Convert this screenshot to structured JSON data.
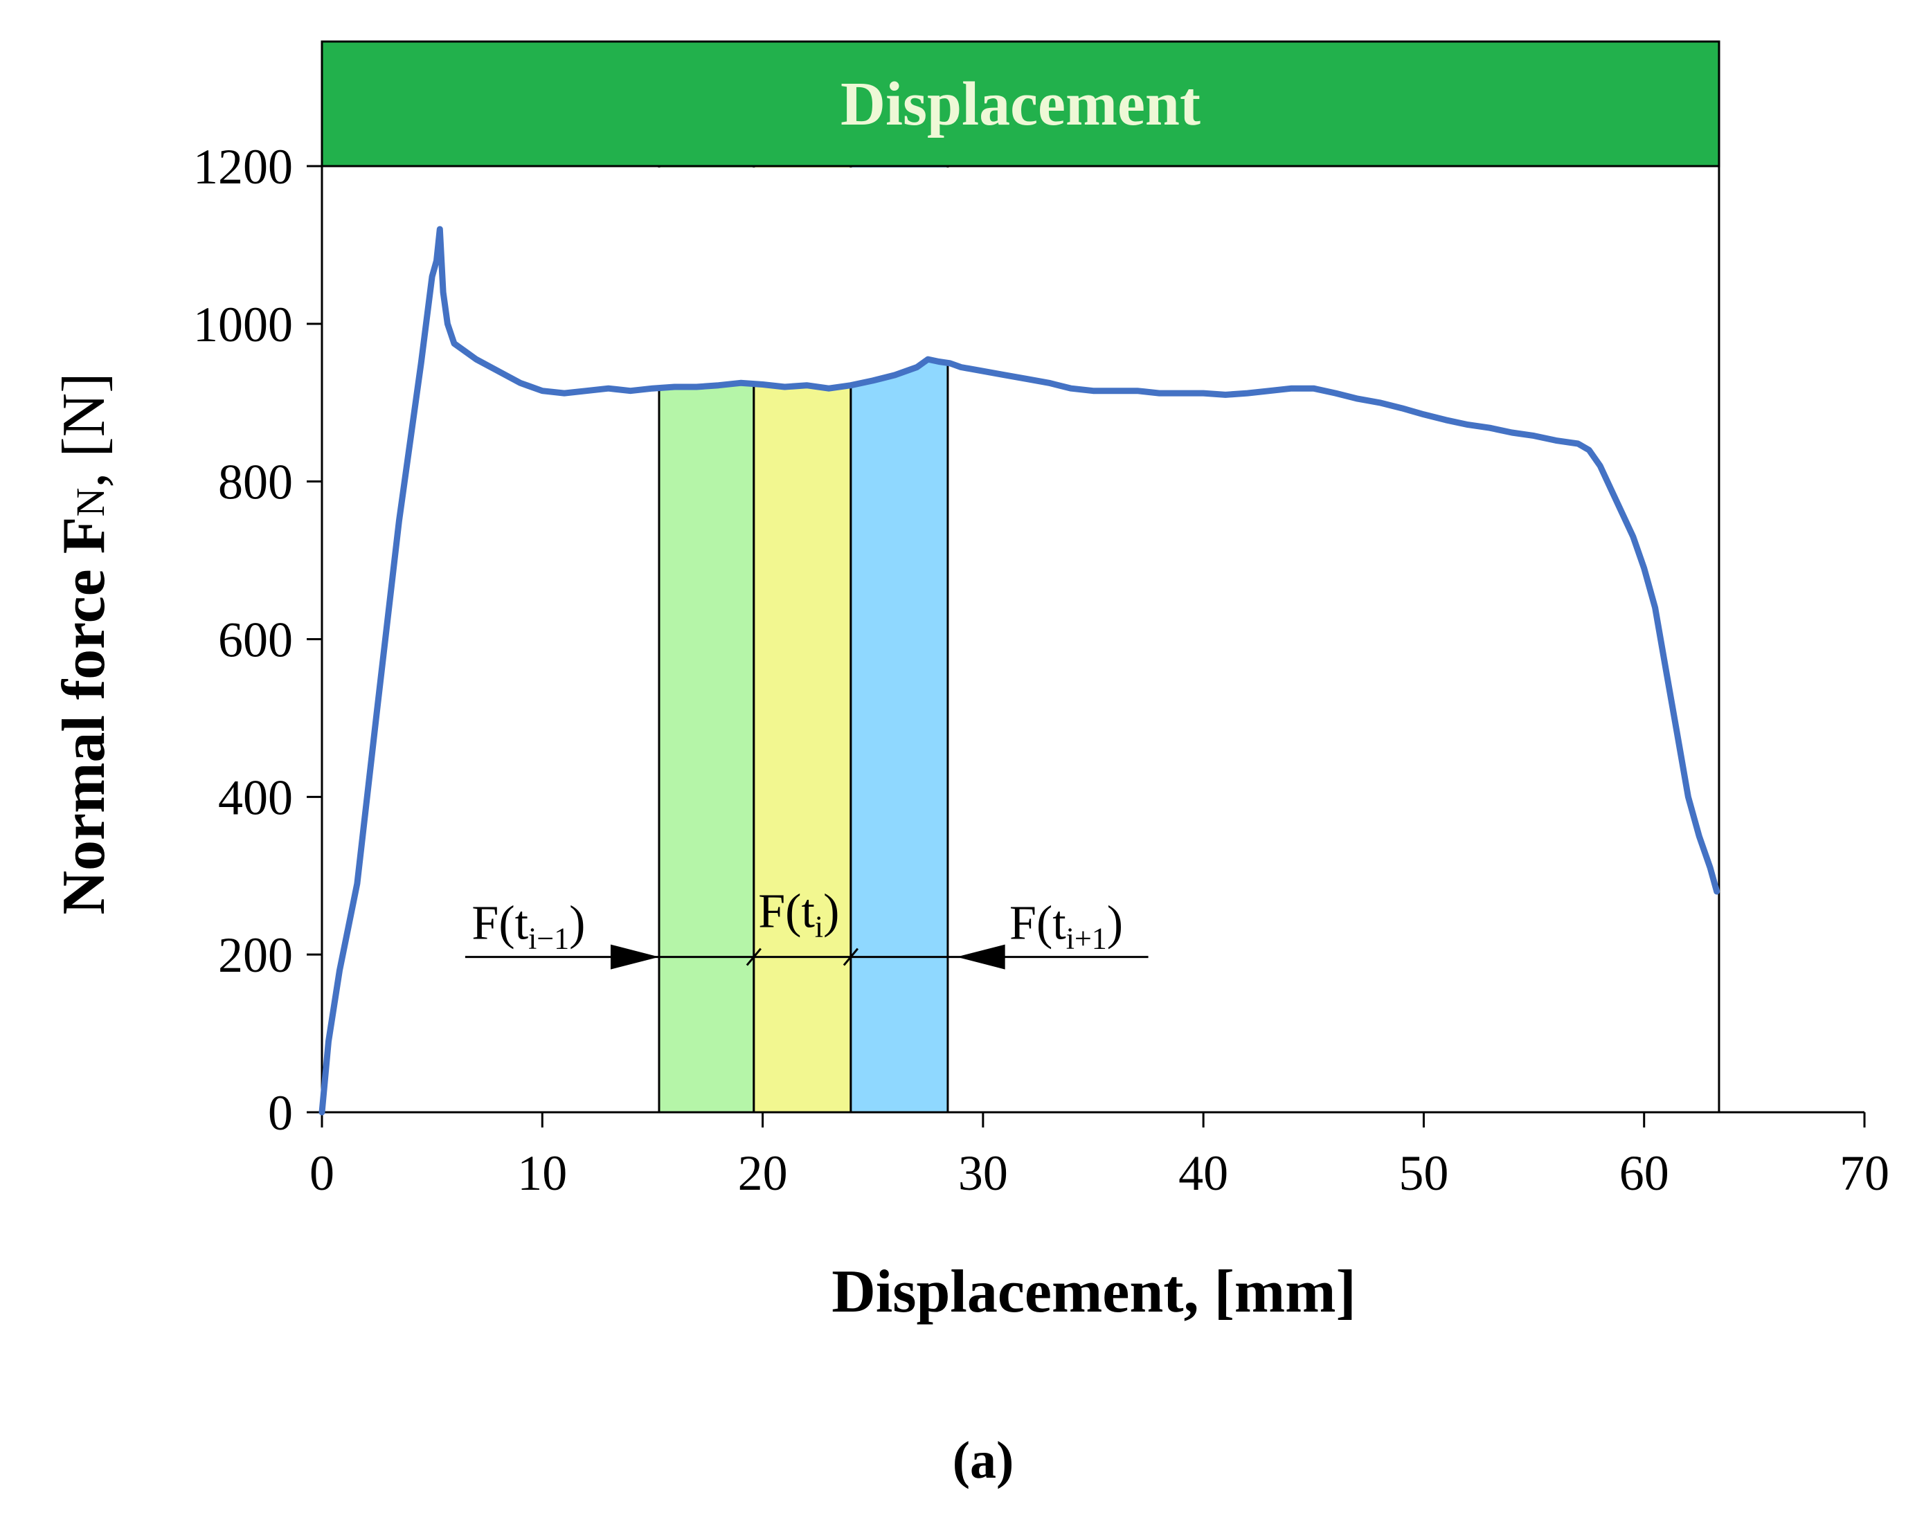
{
  "chart_data": {
    "type": "line",
    "banner": "Displacement",
    "xlabel": "Displacement, [mm]",
    "ylabel_main": "Normal force F",
    "ylabel_sub": "N",
    "ylabel_unit": ", [N]",
    "caption": "(a)",
    "xlim": [
      0,
      70
    ],
    "ylim": [
      0,
      1200
    ],
    "plot_ymax": 1360,
    "plot_right_x": 63.4,
    "xticks": [
      0,
      10,
      20,
      30,
      40,
      50,
      60,
      70
    ],
    "yticks": [
      0,
      200,
      400,
      600,
      800,
      1000,
      1200
    ],
    "xtick_labels": [
      "0",
      "10",
      "20",
      "30",
      "40",
      "50",
      "60",
      "70"
    ],
    "ytick_labels": [
      "0",
      "200",
      "400",
      "600",
      "800",
      "1000",
      "1200"
    ],
    "series": [
      {
        "name": "Normal force",
        "color": "#4472c4",
        "x": [
          0,
          0.3,
          0.8,
          1.6,
          2.5,
          3.5,
          4.5,
          5.0,
          5.2,
          5.35,
          5.5,
          5.7,
          6.0,
          6.5,
          7.0,
          8.0,
          9.0,
          10.0,
          11.0,
          12.0,
          13.0,
          14.0,
          15.0,
          16.0,
          17.0,
          18.0,
          19.0,
          20.0,
          21.0,
          22.0,
          23.0,
          24.0,
          25.0,
          26.0,
          27.0,
          27.5,
          28.0,
          28.5,
          29.0,
          30.0,
          31.0,
          32.0,
          33.0,
          34.0,
          35.0,
          36.0,
          37.0,
          38.0,
          39.0,
          40.0,
          41.0,
          42.0,
          43.0,
          44.0,
          45.0,
          46.0,
          47.0,
          48.0,
          49.0,
          50.0,
          51.0,
          52.0,
          53.0,
          54.0,
          55.0,
          56.0,
          57.0,
          57.5,
          58.0,
          58.5,
          59.0,
          59.5,
          60.0,
          60.5,
          61.0,
          61.5,
          62.0,
          62.5,
          63.0,
          63.3
        ],
        "values": [
          0,
          90,
          180,
          290,
          510,
          750,
          950,
          1060,
          1080,
          1120,
          1040,
          1000,
          975,
          965,
          955,
          940,
          925,
          915,
          912,
          915,
          918,
          915,
          918,
          920,
          920,
          922,
          925,
          923,
          920,
          922,
          918,
          922,
          928,
          935,
          945,
          955,
          952,
          950,
          945,
          940,
          935,
          930,
          925,
          918,
          915,
          915,
          915,
          912,
          912,
          912,
          910,
          912,
          915,
          918,
          918,
          912,
          905,
          900,
          893,
          885,
          878,
          872,
          868,
          862,
          858,
          852,
          848,
          840,
          820,
          790,
          760,
          730,
          690,
          640,
          560,
          480,
          400,
          350,
          310,
          280
        ]
      }
    ],
    "regions": [
      {
        "x0": 15.3,
        "x1": 19.6,
        "color": "#b5f5a8"
      },
      {
        "x0": 19.6,
        "x1": 24.0,
        "color": "#f2f790"
      },
      {
        "x0": 24.0,
        "x1": 28.4,
        "color": "#8fd8ff"
      }
    ],
    "annotations": [
      {
        "main": "F(t",
        "sub": "i−1",
        "close": ")",
        "x": 6.8,
        "y": 220
      },
      {
        "main": "F(t",
        "sub": "i",
        "close": ")",
        "x": 19.8,
        "y": 235
      },
      {
        "main": "F(t",
        "sub": "i+1",
        "close": ")",
        "x": 31.2,
        "y": 220
      }
    ],
    "arrow_line": {
      "x0": 6.5,
      "x1": 37.5,
      "y": 197
    },
    "arrow_left_tip": 15.3,
    "arrow_right_tip": 28.8,
    "banner_color": "#22b14c",
    "banner_text_color": "#eef8d6"
  }
}
